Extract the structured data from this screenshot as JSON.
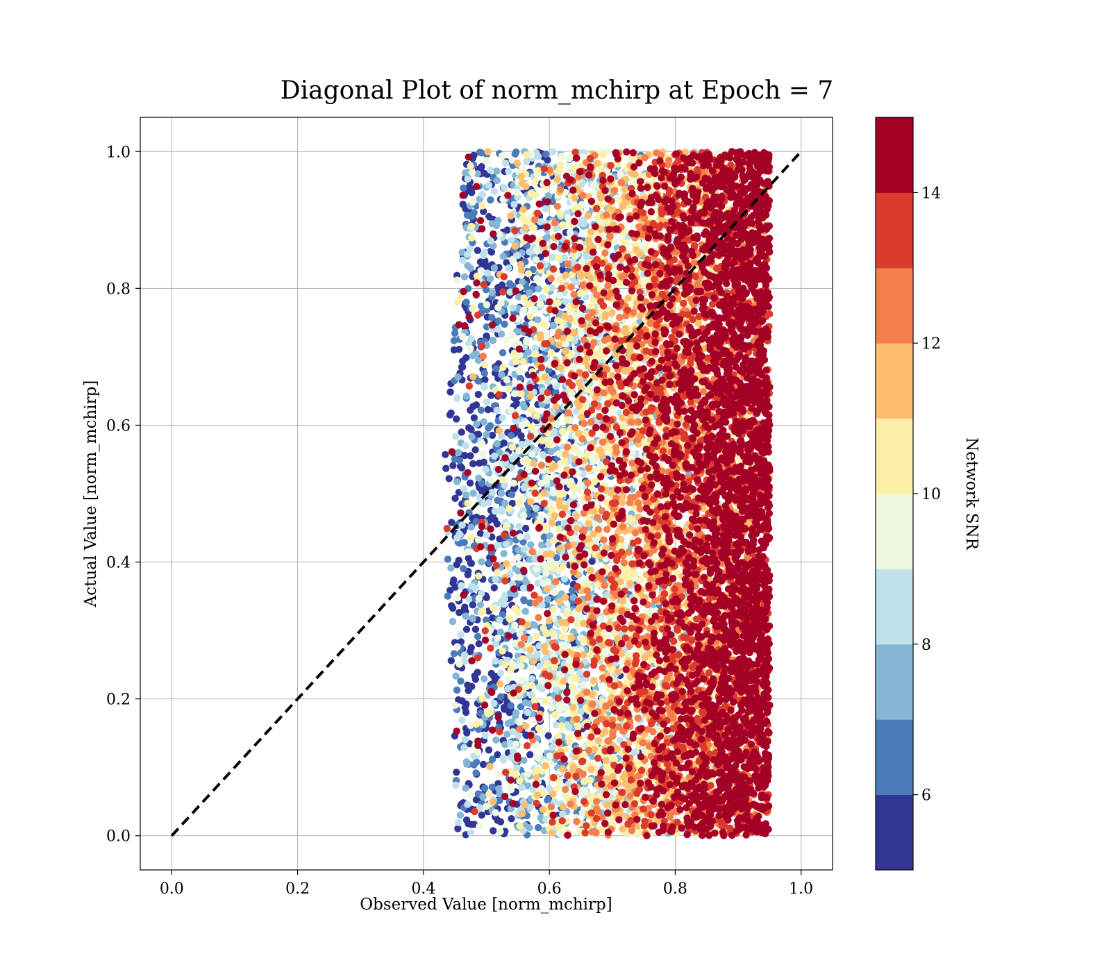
{
  "chart_data": {
    "type": "scatter",
    "title": "Diagonal Plot of norm_mchirp at Epoch = 7",
    "xlabel": "Observed Value [norm_mchirp]",
    "ylabel": "Actual Value [norm_mchirp]",
    "xlim": [
      -0.05,
      1.05
    ],
    "ylim": [
      -0.05,
      1.05
    ],
    "xticks": [
      "0.0",
      "0.2",
      "0.4",
      "0.6",
      "0.8",
      "1.0"
    ],
    "yticks": [
      "0.0",
      "0.2",
      "0.4",
      "0.6",
      "0.8",
      "1.0"
    ],
    "grid": true,
    "reference_line": {
      "x": [
        0,
        1
      ],
      "y": [
        0,
        1
      ],
      "style": "dashed",
      "color": "#000000"
    },
    "colorbar": {
      "label": "Network SNR",
      "range": [
        5,
        15
      ],
      "ticks": [
        "6",
        "8",
        "10",
        "12",
        "14"
      ],
      "colors": [
        "#313695",
        "#4575b4",
        "#74add1",
        "#abd9e9",
        "#e0f3f8",
        "#ffffbf",
        "#fee090",
        "#fdae61",
        "#f46d43",
        "#d73027",
        "#a50026"
      ],
      "bins": [
        "#313695",
        "#4b7bb8",
        "#84b7d6",
        "#bfe1ec",
        "#eef7e0",
        "#fff0a8",
        "#fdbe6e",
        "#f57f4c",
        "#db3b2c",
        "#a50026"
      ]
    },
    "points_summary": {
      "count_approx": 20000,
      "x_range": [
        0.43,
        0.95
      ],
      "y_range": [
        0.0,
        1.0
      ],
      "trend": "SNR increases with observed value; x between 0.43 and 0.95, y uniform between 0 and 1"
    },
    "series": [
      {
        "values_sample": [
          {
            "x": 0.47,
            "y": 0.95,
            "snr": 6.0
          },
          {
            "x": 0.55,
            "y": 0.9,
            "snr": 7.5
          },
          {
            "x": 0.62,
            "y": 0.55,
            "snr": 10.0
          },
          {
            "x": 0.7,
            "y": 0.4,
            "snr": 11.5
          },
          {
            "x": 0.8,
            "y": 0.6,
            "snr": 13.0
          },
          {
            "x": 0.9,
            "y": 0.5,
            "snr": 15.0
          },
          {
            "x": 0.93,
            "y": 0.2,
            "snr": 15.0
          }
        ]
      }
    ]
  }
}
